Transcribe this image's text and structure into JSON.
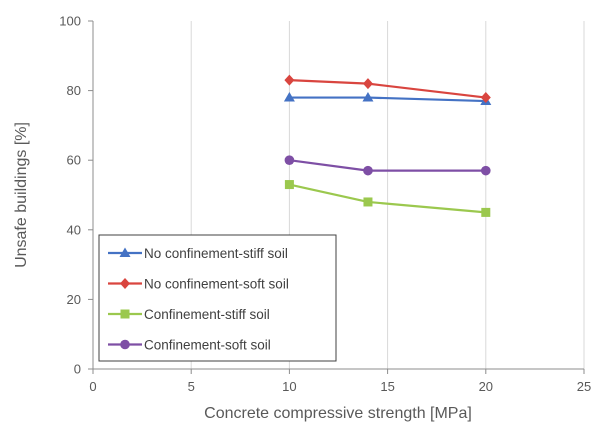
{
  "chart_data": {
    "type": "line",
    "title": "",
    "xlabel": "Concrete compressive strength [MPa]",
    "ylabel": "Unsafe buildings [%]",
    "xlim": [
      0,
      25
    ],
    "ylim": [
      0,
      100
    ],
    "xticks": [
      0,
      5,
      10,
      15,
      20,
      25
    ],
    "yticks": [
      0,
      20,
      40,
      60,
      80,
      100
    ],
    "grid": "vertical",
    "legend_position": "bottom-left",
    "series": [
      {
        "name": "No confinement-stiff soil",
        "color": "#4472C4",
        "marker": "triangle",
        "x": [
          10,
          14,
          20
        ],
        "y": [
          78,
          78,
          77
        ]
      },
      {
        "name": "No confinement-soft soil",
        "color": "#D9453F",
        "marker": "diamond",
        "x": [
          10,
          14,
          20
        ],
        "y": [
          83,
          82,
          78
        ]
      },
      {
        "name": "Confinement-stiff soil",
        "color": "#9BC84E",
        "marker": "square",
        "x": [
          10,
          14,
          20
        ],
        "y": [
          53,
          48,
          45
        ]
      },
      {
        "name": "Confinement-soft soil",
        "color": "#7E4FA5",
        "marker": "circle",
        "x": [
          10,
          14,
          20
        ],
        "y": [
          60,
          57,
          57
        ]
      }
    ]
  }
}
